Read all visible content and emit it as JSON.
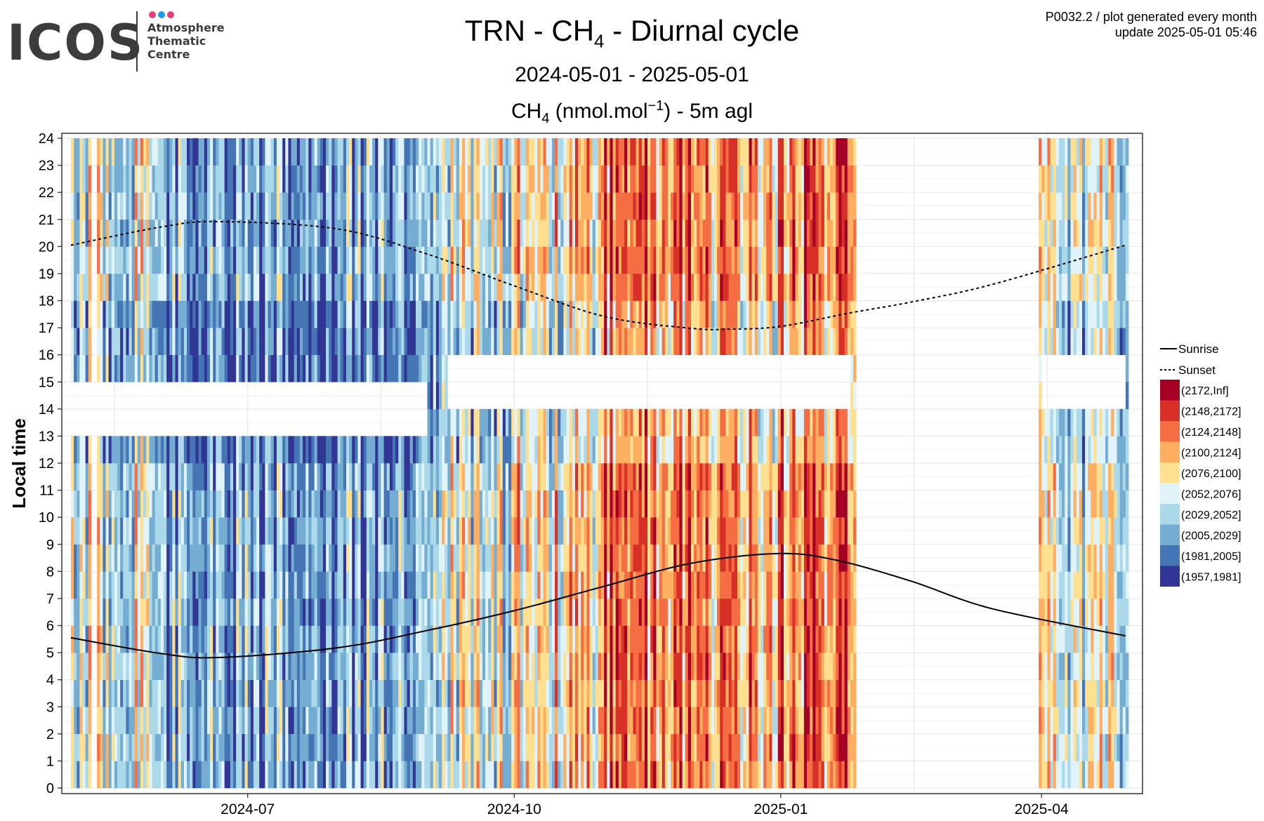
{
  "logo": {
    "word": "ICOS",
    "sub_lines": [
      "Atmosphere",
      "Thematic",
      "Centre"
    ],
    "dot_colors": [
      "#e63e7d",
      "#1e9be8",
      "#e63e7d"
    ]
  },
  "meta": {
    "line1": "P0032.2 / plot generated every month",
    "line2": "update  2025-05-01 05:46"
  },
  "title": {
    "prefix": "TRN - CH",
    "sub": "4",
    "suffix": " - Diurnal cycle"
  },
  "subtitle": "2024-05-01 - 2025-05-01",
  "panel_title": {
    "prefix": "CH",
    "sub": "4",
    "mid": " (nmol.mol",
    "sup": "−1",
    "suffix": ") - 5m agl"
  },
  "chart_data": {
    "type": "heatmap",
    "x_range": [
      "2024-05-01",
      "2025-05-01"
    ],
    "x_ticks": [
      "2024-07",
      "2024-10",
      "2025-01",
      "2025-04"
    ],
    "x_tick_dates": [
      "2024-07-01",
      "2024-10-01",
      "2025-01-01",
      "2025-04-01"
    ],
    "ylabel": "Local time",
    "y_range": [
      0,
      24
    ],
    "y_ticks": [
      0,
      1,
      2,
      3,
      4,
      5,
      6,
      7,
      8,
      9,
      10,
      11,
      12,
      13,
      14,
      15,
      16,
      17,
      18,
      19,
      20,
      21,
      22,
      23,
      24
    ],
    "grid": true,
    "legend_position": "right",
    "data_gaps": [
      [
        "2024-05-08",
        "2024-05-10"
      ],
      [
        "2025-01-27",
        "2025-03-31"
      ]
    ],
    "missing_hours": [
      {
        "from": "2024-05-01",
        "to": "2024-09-01",
        "hours": [
          13,
          14
        ]
      },
      {
        "from": "2024-09-08",
        "to": "2025-01-25",
        "hours": [
          14,
          15
        ]
      },
      {
        "from": "2025-04-01",
        "to": "2025-04-30",
        "hours": [
          14,
          15
        ]
      }
    ],
    "legend": [
      {
        "label": "Sunrise",
        "style": "solid"
      },
      {
        "label": "Sunset",
        "style": "dotted"
      }
    ],
    "bins": [
      {
        "label": "(2172,Inf]",
        "color": "#a50026"
      },
      {
        "label": "(2148,2172]",
        "color": "#d73027"
      },
      {
        "label": "(2124,2148]",
        "color": "#f46d43"
      },
      {
        "label": "(2100,2124]",
        "color": "#fdae61"
      },
      {
        "label": "(2076,2100]",
        "color": "#fee090"
      },
      {
        "label": "(2052,2076]",
        "color": "#e0f3f8"
      },
      {
        "label": "(2029,2052]",
        "color": "#abd9e9"
      },
      {
        "label": "(2005,2029]",
        "color": "#74add1"
      },
      {
        "label": "(1981,2005]",
        "color": "#4575b4"
      },
      {
        "label": "(1957,1981]",
        "color": "#313695"
      }
    ],
    "monthly_typical_bin_index": {
      "2024-05": 5,
      "2024-06": 7,
      "2024-07": 7,
      "2024-08": 7,
      "2024-09": 5,
      "2024-10": 4,
      "2024-11": 2,
      "2024-12": 3,
      "2025-01": 2,
      "2025-04": 5
    },
    "series": [
      {
        "name": "Sunrise",
        "x": [
          "2024-05-01",
          "2024-06-01",
          "2024-06-21",
          "2024-08-01",
          "2024-09-01",
          "2024-10-01",
          "2024-11-01",
          "2024-12-01",
          "2024-12-31",
          "2025-01-20",
          "2025-02-15",
          "2025-03-15",
          "2025-04-30"
        ],
        "y": [
          5.55,
          4.97,
          4.82,
          5.18,
          5.82,
          6.55,
          7.45,
          8.3,
          8.66,
          8.42,
          7.64,
          6.62,
          5.62
        ]
      },
      {
        "name": "Sunset",
        "x": [
          "2024-05-01",
          "2024-06-01",
          "2024-06-21",
          "2024-08-01",
          "2024-09-01",
          "2024-10-01",
          "2024-11-01",
          "2024-12-01",
          "2024-12-15",
          "2025-01-01",
          "2025-01-25",
          "2025-02-15",
          "2025-03-15",
          "2025-04-30"
        ],
        "y": [
          20.05,
          20.72,
          20.92,
          20.65,
          19.72,
          18.55,
          17.42,
          16.98,
          16.95,
          17.05,
          17.55,
          17.95,
          18.6,
          20.05
        ]
      }
    ]
  }
}
